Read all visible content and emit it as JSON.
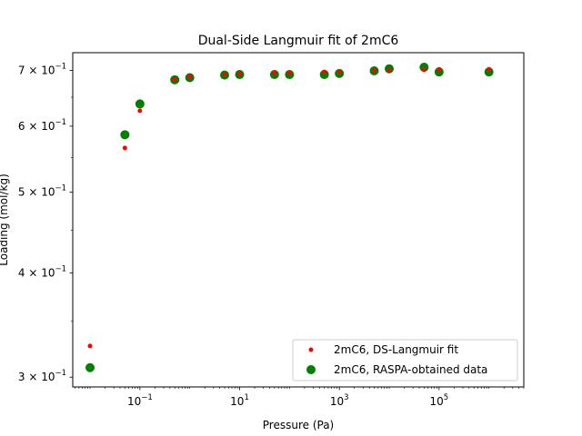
{
  "chart_data": {
    "type": "scatter",
    "title": "Dual-Side Langmuir fit of 2mC6",
    "xlabel": "Pressure (Pa)",
    "ylabel": "Loading (mol/kg)",
    "xscale": "log",
    "yscale": "log",
    "xlim": [
      0.0045,
      5000000
    ],
    "ylim": [
      0.292,
      0.735
    ],
    "xticks": [
      {
        "value": 0.1,
        "label_base": "10",
        "label_exp": "−1"
      },
      {
        "value": 10,
        "label_base": "10",
        "label_exp": "1"
      },
      {
        "value": 1000,
        "label_base": "10",
        "label_exp": "3"
      },
      {
        "value": 100000,
        "label_base": "10",
        "label_exp": "5"
      }
    ],
    "yticks": [
      {
        "value": 0.3,
        "label_prefix": "3 × 10",
        "label_exp": "−1"
      },
      {
        "value": 0.4,
        "label_prefix": "4 × 10",
        "label_exp": "−1"
      },
      {
        "value": 0.5,
        "label_prefix": "5 × 10",
        "label_exp": "−1"
      },
      {
        "value": 0.6,
        "label_prefix": "6 × 10",
        "label_exp": "−1"
      },
      {
        "value": 0.7,
        "label_prefix": "7 × 10",
        "label_exp": "−1"
      }
    ],
    "grid": false,
    "legend_position": "lower-right",
    "series": [
      {
        "name": "2mC6, DS-Langmuir fit",
        "color": "#ff0000",
        "marker": "small-dot",
        "x": [
          0.01,
          0.05,
          0.1,
          0.5,
          1,
          5,
          10,
          50,
          100,
          500,
          1000,
          5000,
          10000,
          50000,
          100000,
          1000000
        ],
        "y": [
          0.327,
          0.565,
          0.626,
          0.683,
          0.688,
          0.692,
          0.694,
          0.695,
          0.695,
          0.697,
          0.697,
          0.699,
          0.7,
          0.701,
          0.702,
          0.702
        ]
      },
      {
        "name": "2mC6, RASPA-obtained data",
        "color": "#008000",
        "marker": "circle",
        "x": [
          0.01,
          0.05,
          0.1,
          0.5,
          1,
          5,
          10,
          50,
          100,
          500,
          1000,
          5000,
          10000,
          50000,
          100000,
          1000000
        ],
        "y": [
          0.308,
          0.586,
          0.638,
          0.682,
          0.686,
          0.691,
          0.692,
          0.692,
          0.692,
          0.692,
          0.694,
          0.699,
          0.703,
          0.706,
          0.697,
          0.697
        ]
      }
    ]
  }
}
